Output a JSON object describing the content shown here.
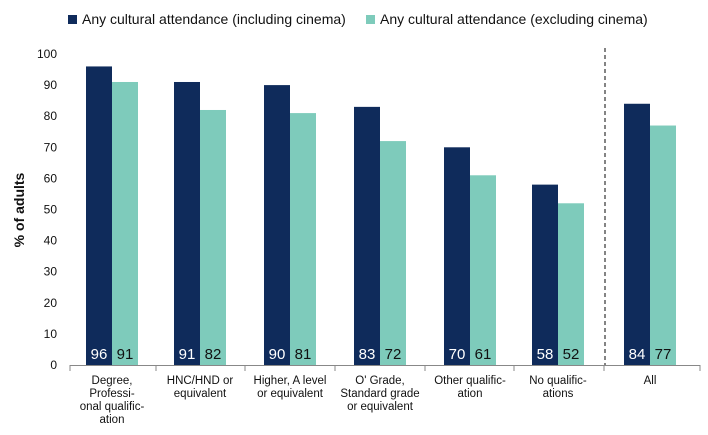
{
  "chart_data": {
    "type": "bar",
    "title": "",
    "xlabel": "",
    "ylabel": "% of adults",
    "ylim": [
      0,
      100
    ],
    "yticks": [
      "0",
      "10",
      "20",
      "30",
      "40",
      "50",
      "60",
      "70",
      "80",
      "90",
      "100"
    ],
    "grid": false,
    "legend_position": "top",
    "categories": [
      [
        "Degree,",
        "Professi-",
        "onal qualific-",
        "ation"
      ],
      [
        "HNC/HND or",
        "equivalent"
      ],
      [
        "Higher, A level",
        "or equivalent"
      ],
      [
        "O' Grade,",
        "Standard grade",
        "or equivalent"
      ],
      [
        "Other qualific-",
        "ation"
      ],
      [
        "No qualific-",
        "ations"
      ],
      [
        "All"
      ]
    ],
    "series": [
      {
        "name": "Any cultural attendance (including cinema)",
        "color": "#0f2b5b",
        "values": [
          96,
          91,
          90,
          83,
          70,
          58,
          84
        ],
        "labels": [
          "96",
          "91",
          "90",
          "83",
          "70",
          "58",
          "84"
        ]
      },
      {
        "name": "Any cultural attendance (excluding cinema)",
        "color": "#7ecbbb",
        "values": [
          91,
          82,
          81,
          72,
          61,
          52,
          77
        ],
        "labels": [
          "91",
          "82",
          "81",
          "72",
          "61",
          "52",
          "77"
        ]
      }
    ]
  }
}
